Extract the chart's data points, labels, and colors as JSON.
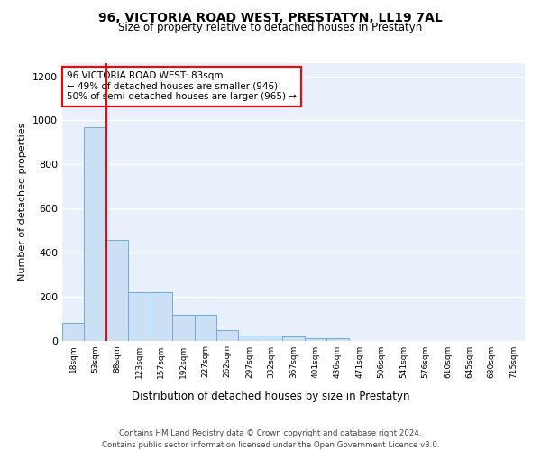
{
  "title": "96, VICTORIA ROAD WEST, PRESTATYN, LL19 7AL",
  "subtitle": "Size of property relative to detached houses in Prestatyn",
  "xlabel": "Distribution of detached houses by size in Prestatyn",
  "ylabel": "Number of detached properties",
  "bar_labels": [
    "18sqm",
    "53sqm",
    "88sqm",
    "123sqm",
    "157sqm",
    "192sqm",
    "227sqm",
    "262sqm",
    "297sqm",
    "332sqm",
    "367sqm",
    "401sqm",
    "436sqm",
    "471sqm",
    "506sqm",
    "541sqm",
    "576sqm",
    "610sqm",
    "645sqm",
    "680sqm",
    "715sqm"
  ],
  "bar_values": [
    80,
    970,
    455,
    218,
    218,
    115,
    115,
    47,
    22,
    22,
    18,
    10,
    10,
    0,
    0,
    0,
    0,
    0,
    0,
    0,
    0
  ],
  "bar_color": "#cce0f5",
  "bar_edge_color": "#6aaed6",
  "annotation_text": "96 VICTORIA ROAD WEST: 83sqm\n← 49% of detached houses are smaller (946)\n50% of semi-detached houses are larger (965) →",
  "ylim": [
    0,
    1260
  ],
  "yticks": [
    0,
    200,
    400,
    600,
    800,
    1000,
    1200
  ],
  "background_color": "#eaf0fb",
  "grid_color": "white",
  "footer_line1": "Contains HM Land Registry data © Crown copyright and database right 2024.",
  "footer_line2": "Contains public sector information licensed under the Open Government Licence v3.0."
}
